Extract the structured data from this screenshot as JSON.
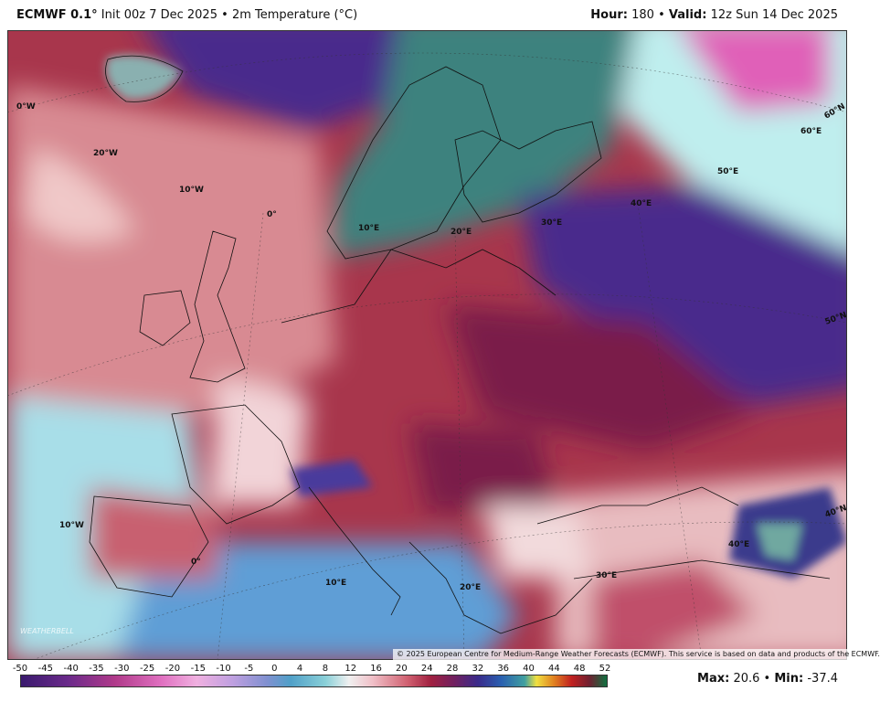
{
  "header": {
    "model": "ECMWF 0.1",
    "model_unit": "°",
    "init": "Init 00z 7 Dec 2025",
    "sep": "•",
    "product": "2m Temperature (°C)",
    "hour_label": "Hour:",
    "hour": "180",
    "valid_label": "Valid:",
    "valid": "12z Sun 14 Dec 2025"
  },
  "map": {
    "grid_labels": [
      "0°W",
      "20°W",
      "10°W",
      "0°",
      "10°E",
      "20°E",
      "30°E",
      "40°E",
      "50°E",
      "60°E",
      "60°N",
      "50°N",
      "40°N",
      "40°E",
      "30°E",
      "20°E",
      "10°E",
      "0°",
      "10°W"
    ],
    "logo": "WEATHERBELL",
    "copyright": "© 2025 European Centre for Medium-Range Weather Forecasts (ECMWF). This service is based on data and products of the ECMWF."
  },
  "colorbar": {
    "ticks": [
      "-50",
      "-45",
      "-40",
      "-35",
      "-30",
      "-25",
      "-20",
      "-15",
      "-10",
      "-5",
      "0",
      "4",
      "8",
      "12",
      "16",
      "20",
      "24",
      "28",
      "32",
      "36",
      "40",
      "44",
      "48",
      "52"
    ]
  },
  "footer": {
    "max_label": "Max:",
    "max": "20.6",
    "min_label": "Min:",
    "min": "-37.4"
  }
}
